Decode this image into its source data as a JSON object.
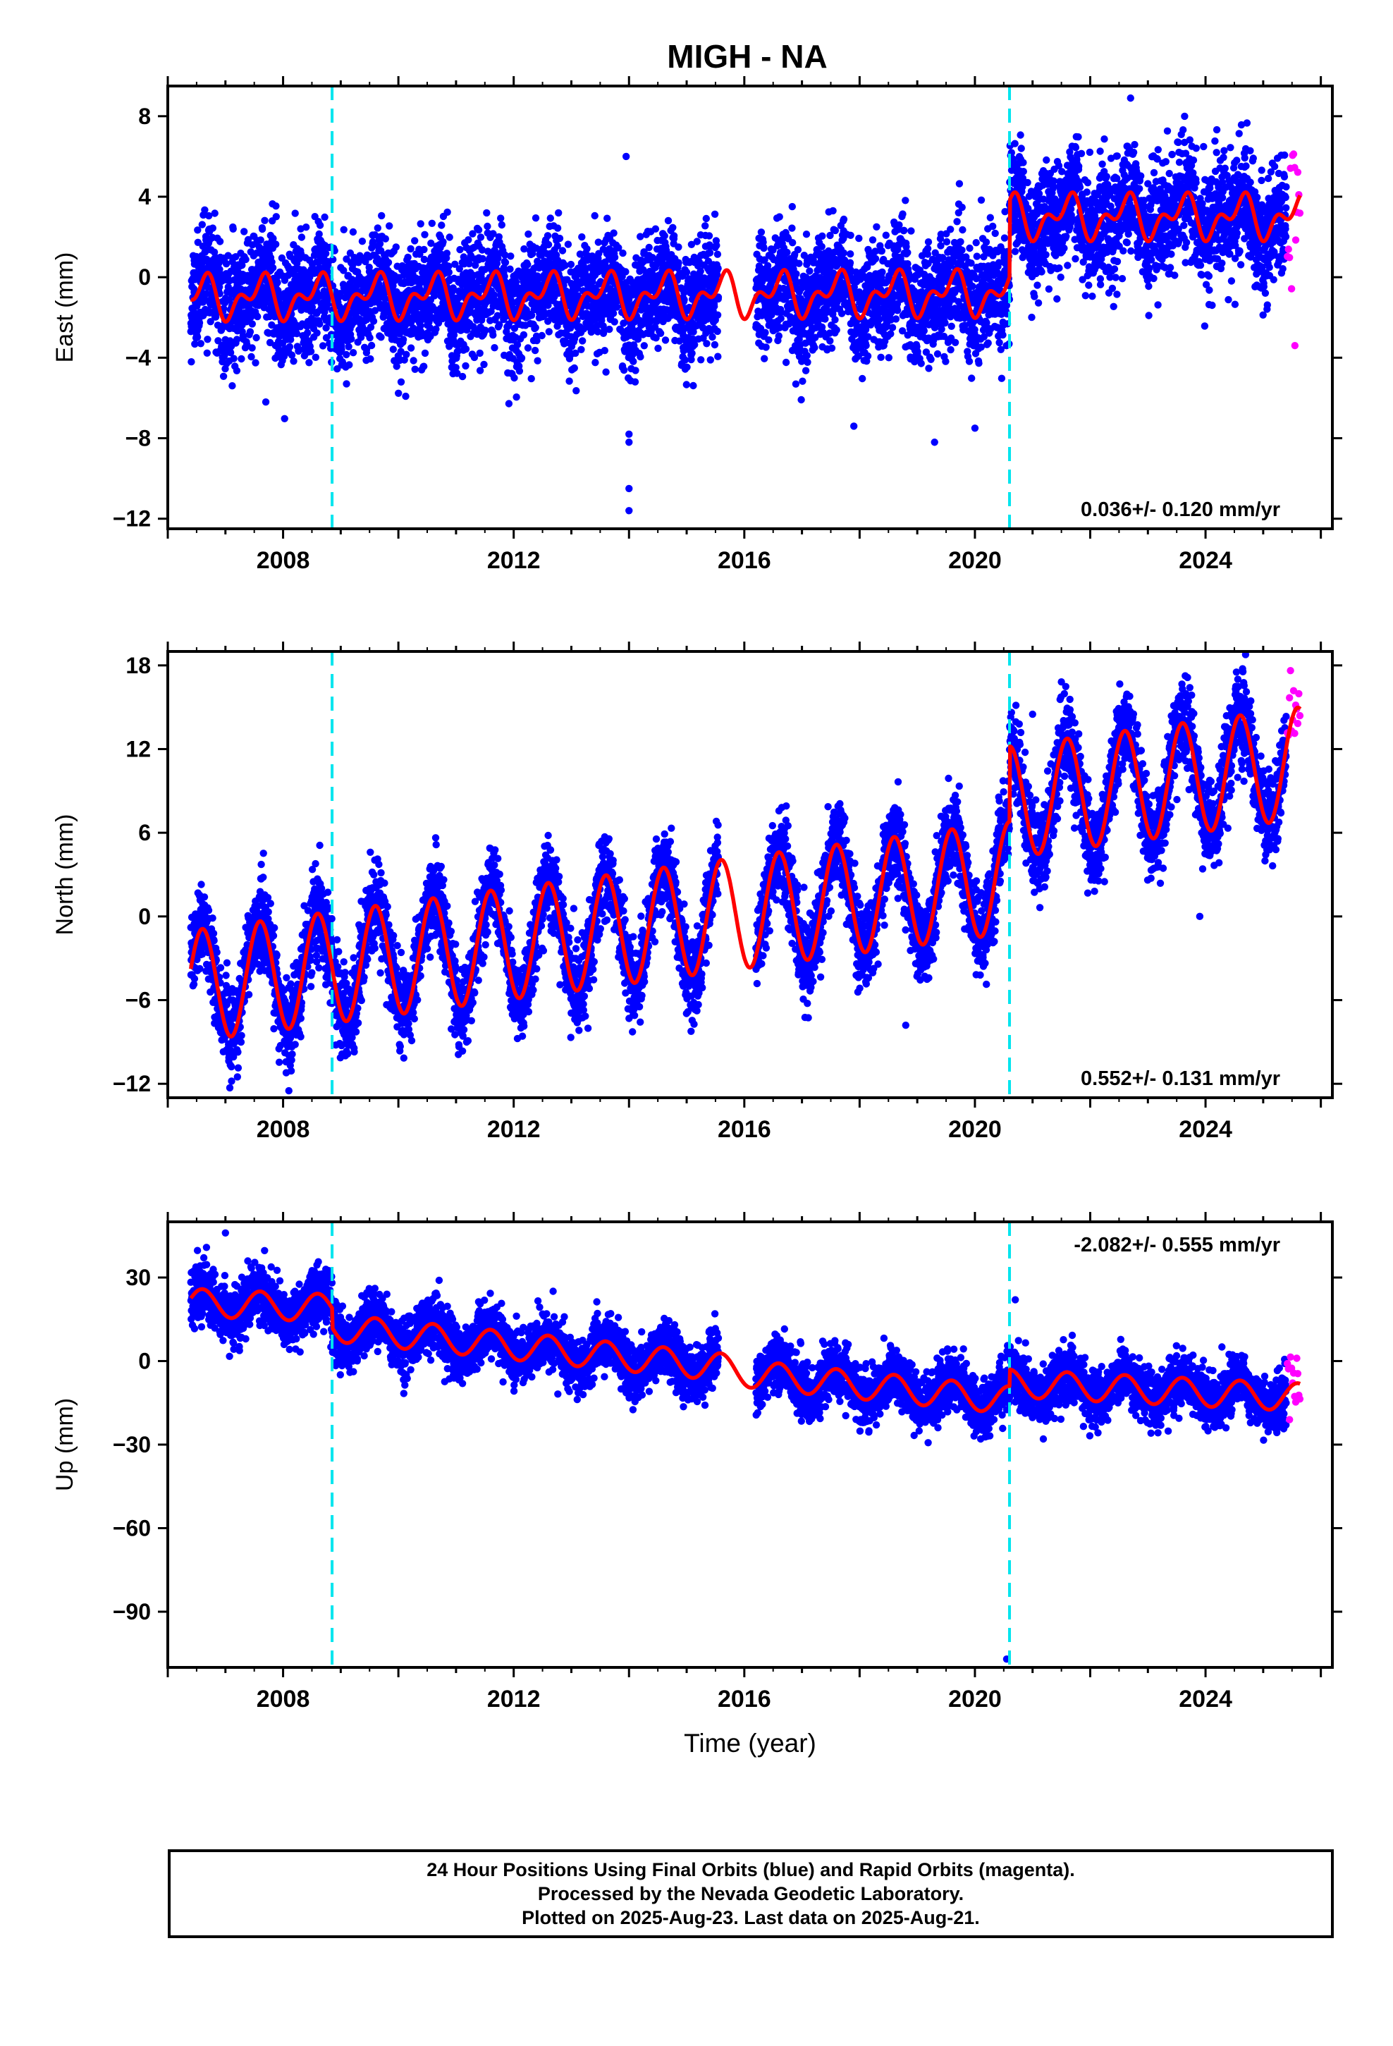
{
  "title": "MIGH - NA",
  "colors": {
    "final_orbits": "#0000ff",
    "rapid_orbits": "#ff00ff",
    "model_fit": "#ff0000",
    "equipment_change": "#00e5ee",
    "axes": "#000000"
  },
  "chart_data": [
    {
      "type": "scatter",
      "panel": "east",
      "ylabel": "East (mm)",
      "xlabel": "",
      "xlim": [
        2006.0,
        2026.2
      ],
      "ylim": [
        -12.5,
        9.5
      ],
      "yticks": [
        -12,
        -8,
        -4,
        0,
        4,
        8
      ],
      "xticks": [
        2008,
        2012,
        2016,
        2020,
        2024
      ],
      "grid": false,
      "velocity_label": "0.036+/- 0.120 mm/yr",
      "velocity_label_position": "bottom-right",
      "offsets": [
        2008.85,
        2020.6
      ],
      "data_start": 2006.4,
      "data_gap": [
        2015.55,
        2016.2
      ],
      "final_end": 2025.4,
      "rapid_end": 2025.64,
      "model_levels": [
        [
          2006.4,
          -1.0
        ],
        [
          2020.6,
          -0.8
        ],
        [
          2020.6,
          3.0
        ],
        [
          2025.64,
          3.0
        ]
      ],
      "annual_amplitude": 0.8,
      "semiannual_amplitude": 0.6,
      "scatter_sd": 1.4,
      "outliers": [
        [
          2014.0,
          -7.8
        ],
        [
          2014.0,
          -8.2
        ],
        [
          2014.0,
          -10.5
        ],
        [
          2014.0,
          -11.6
        ],
        [
          2013.95,
          6.0
        ],
        [
          2007.7,
          -6.2
        ],
        [
          2009.1,
          -5.3
        ],
        [
          2017.9,
          -7.4
        ],
        [
          2019.3,
          -8.2
        ],
        [
          2020.0,
          -7.5
        ],
        [
          2022.7,
          8.9
        ],
        [
          2025.55,
          -3.4
        ]
      ],
      "seed": 11
    },
    {
      "type": "scatter",
      "panel": "north",
      "ylabel": "North (mm)",
      "xlabel": "",
      "xlim": [
        2006.0,
        2026.2
      ],
      "ylim": [
        -13,
        19
      ],
      "yticks": [
        -12,
        -6,
        0,
        6,
        12,
        18
      ],
      "xticks": [
        2008,
        2012,
        2016,
        2020,
        2024
      ],
      "grid": false,
      "velocity_label": "0.552+/- 0.131 mm/yr",
      "velocity_label_position": "bottom-right",
      "offsets": [
        2008.85,
        2020.6
      ],
      "data_start": 2006.4,
      "data_gap": [
        2015.55,
        2016.2
      ],
      "final_end": 2025.4,
      "rapid_end": 2025.64,
      "model_levels": [
        [
          2006.4,
          -5.0
        ],
        [
          2020.6,
          2.8
        ],
        [
          2020.6,
          8.2
        ],
        [
          2025.64,
          11.0
        ]
      ],
      "annual_amplitude": 4.0,
      "semiannual_amplitude": 0.0,
      "scatter_sd": 1.5,
      "outliers": [
        [
          2008.1,
          -12.5
        ],
        [
          2018.8,
          -7.8
        ],
        [
          2023.9,
          0.0
        ],
        [
          2021.0,
          14.5
        ]
      ],
      "seed": 23
    },
    {
      "type": "scatter",
      "panel": "up",
      "ylabel": "Up (mm)",
      "xlabel": "Time (year)",
      "xlim": [
        2006.0,
        2026.2
      ],
      "ylim": [
        -110,
        50
      ],
      "yticks": [
        -90,
        -60,
        -30,
        0,
        30
      ],
      "xticks": [
        2008,
        2012,
        2016,
        2020,
        2024
      ],
      "grid": false,
      "velocity_label": "-2.082+/- 0.555 mm/yr",
      "velocity_label_position": "top-right",
      "offsets": [
        2008.85,
        2020.6
      ],
      "data_start": 2006.4,
      "data_gap": [
        2015.55,
        2016.2
      ],
      "final_end": 2025.4,
      "rapid_end": 2025.64,
      "model_levels": [
        [
          2006.4,
          21.0
        ],
        [
          2008.85,
          19.0
        ],
        [
          2008.85,
          12.0
        ],
        [
          2015.55,
          -2.0
        ],
        [
          2016.2,
          -5.0
        ],
        [
          2020.6,
          -14.0
        ],
        [
          2020.6,
          -8.0
        ],
        [
          2025.64,
          -13.0
        ]
      ],
      "annual_amplitude": 5.0,
      "semiannual_amplitude": 0.0,
      "scatter_sd": 5.0,
      "outliers": [
        [
          2020.55,
          -107.0
        ],
        [
          2020.7,
          22.0
        ],
        [
          2007.0,
          46.0
        ]
      ],
      "seed": 37
    }
  ],
  "caption": {
    "line1": "24 Hour Positions Using Final Orbits (blue) and Rapid Orbits (magenta).",
    "line2": "Processed by the Nevada Geodetic Laboratory.",
    "line3": "Plotted on 2025-Aug-23. Last data on 2025-Aug-21."
  }
}
